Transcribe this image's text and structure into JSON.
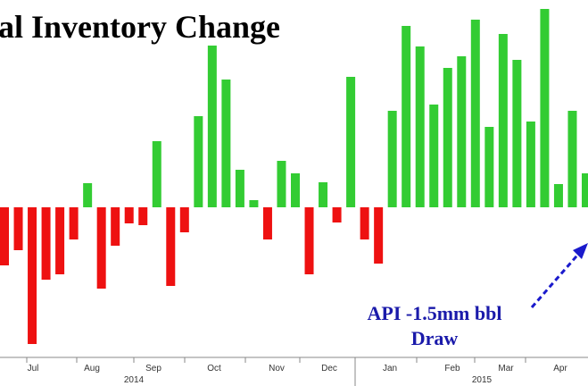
{
  "chart_data": {
    "type": "bar",
    "title": "al Inventory Change",
    "values": [
      -6.5,
      -4.8,
      -15.3,
      -8.1,
      -7.5,
      -3.6,
      2.7,
      -9.1,
      -4.3,
      -1.8,
      -2.0,
      7.4,
      -8.8,
      -2.8,
      10.2,
      18.1,
      14.3,
      4.2,
      0.8,
      -3.6,
      5.2,
      3.8,
      -7.5,
      2.8,
      -1.7,
      14.6,
      -3.6,
      -6.3,
      10.8,
      20.3,
      18.0,
      11.5,
      15.6,
      16.9,
      21.0,
      9.0,
      19.4,
      16.5,
      9.6,
      22.2,
      2.6,
      10.8,
      3.8
    ],
    "ylim": [
      -16.8,
      23.2
    ],
    "positive_color": "#33cc33",
    "negative_color": "#ee1111",
    "month_labels": [
      "Jul",
      "Aug",
      "Sep",
      "Oct",
      "Nov",
      "Dec",
      "Jan",
      "Feb",
      "Mar",
      "Apr"
    ],
    "year_labels": [
      "2014",
      "2015"
    ],
    "annotation": [
      "API -1.5mm bbl",
      "Draw"
    ]
  }
}
